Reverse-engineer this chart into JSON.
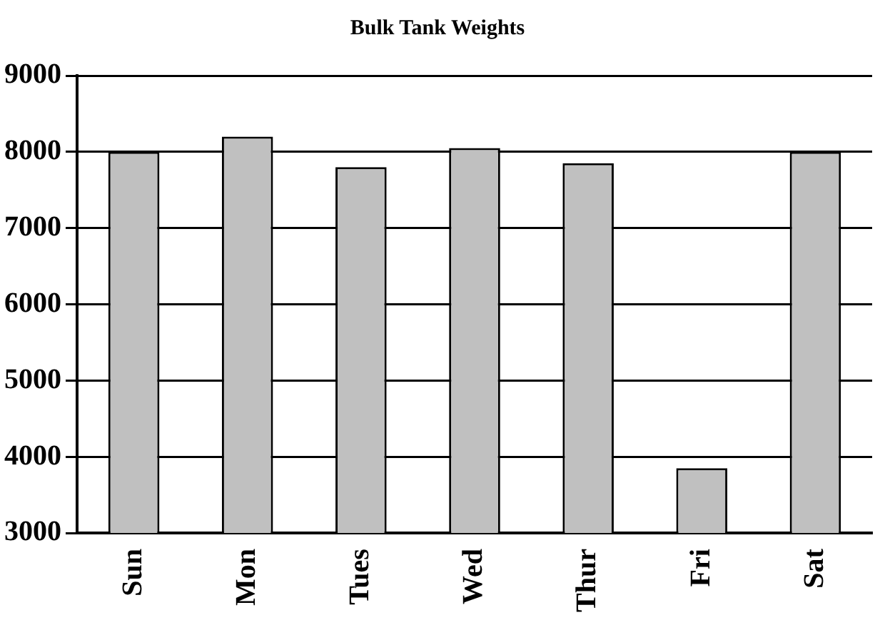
{
  "chart_data": {
    "type": "bar",
    "title": "Bulk Tank Weights",
    "categories": [
      "Sun",
      "Mon",
      "Tues",
      "Wed",
      "Thur",
      "Fri",
      "Sat"
    ],
    "values": [
      8000,
      8200,
      7800,
      8050,
      7850,
      3850,
      8000
    ],
    "color": "#c0c0c0",
    "ylim": [
      3000,
      9000
    ],
    "yticks": [
      3000,
      4000,
      5000,
      6000,
      7000,
      8000,
      9000
    ],
    "grid": "y",
    "legend": false
  }
}
